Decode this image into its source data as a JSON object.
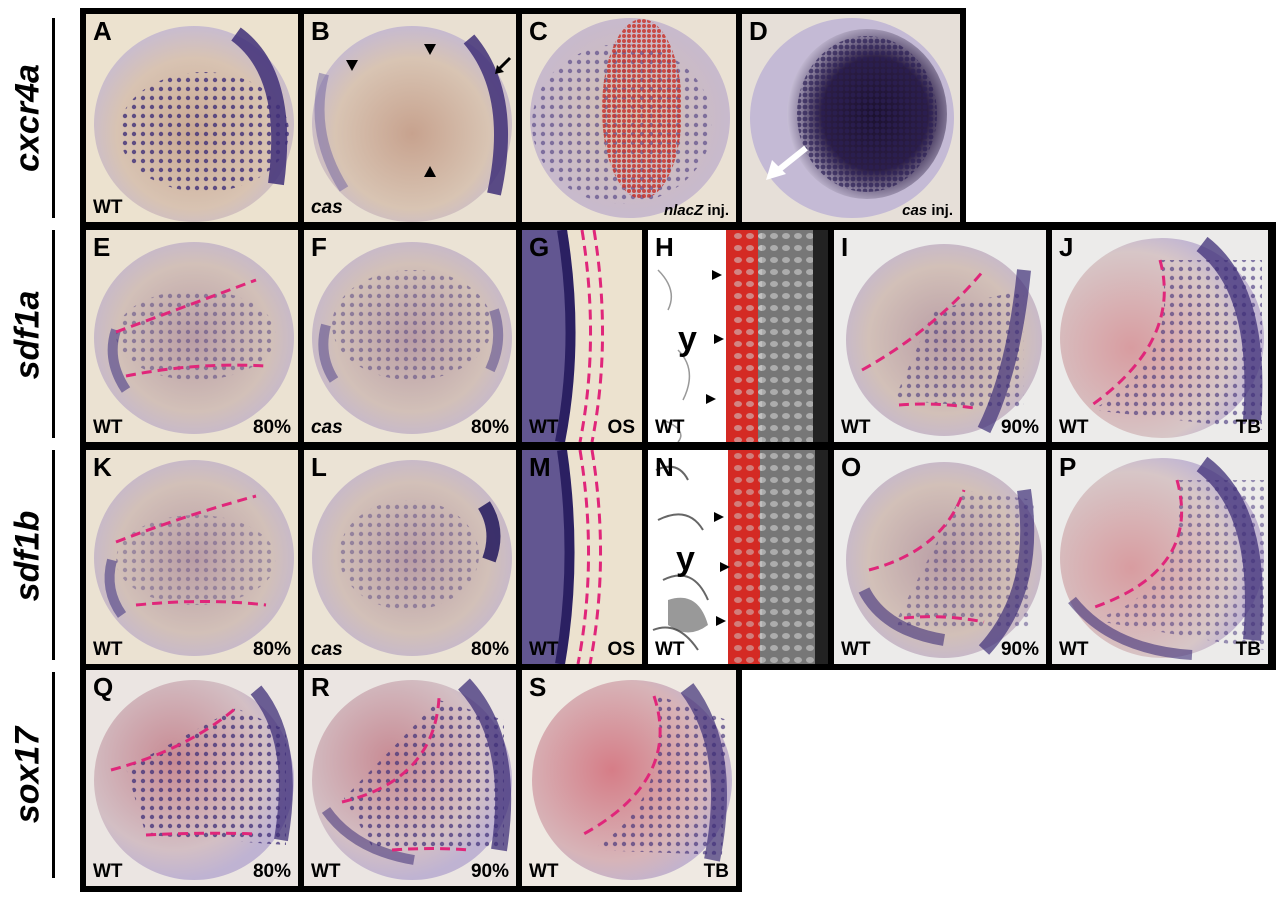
{
  "rows": [
    {
      "gene": "cxcr4a"
    },
    {
      "gene": "sdf1a"
    },
    {
      "gene": "sdf1b"
    },
    {
      "gene": "sox17"
    }
  ],
  "panels": {
    "A": {
      "letter": "A",
      "condition": "WT",
      "stage": ""
    },
    "B": {
      "letter": "B",
      "condition": "cas",
      "stage": ""
    },
    "C": {
      "letter": "C",
      "injection_gene": "nlacZ",
      "injection_suffix": " inj."
    },
    "D": {
      "letter": "D",
      "injection_gene": "cas",
      "injection_suffix": " inj."
    },
    "E": {
      "letter": "E",
      "condition": "WT",
      "stage": "80%"
    },
    "F": {
      "letter": "F",
      "condition": "cas",
      "stage": "80%"
    },
    "G": {
      "letter": "G",
      "condition": "WT",
      "stage": "OS"
    },
    "H": {
      "letter": "H",
      "condition": "WT",
      "label": "y"
    },
    "I": {
      "letter": "I",
      "condition": "WT",
      "stage": "90%"
    },
    "J": {
      "letter": "J",
      "condition": "WT",
      "stage": "TB"
    },
    "K": {
      "letter": "K",
      "condition": "WT",
      "stage": "80%"
    },
    "L": {
      "letter": "L",
      "condition": "cas",
      "stage": "80%"
    },
    "M": {
      "letter": "M",
      "condition": "WT",
      "stage": "OS"
    },
    "N": {
      "letter": "N",
      "condition": "WT",
      "label": "y"
    },
    "O": {
      "letter": "O",
      "condition": "WT",
      "stage": "90%"
    },
    "P": {
      "letter": "P",
      "condition": "WT",
      "stage": "TB"
    },
    "Q": {
      "letter": "Q",
      "condition": "WT",
      "stage": "80%"
    },
    "R": {
      "letter": "R",
      "condition": "WT",
      "stage": "90%"
    },
    "S": {
      "letter": "S",
      "condition": "WT",
      "stage": "TB"
    }
  },
  "colors": {
    "stain_purple": "#3f2f78",
    "outline_magenta": "#e0267a",
    "background_cream": "#ece2cf",
    "fluorescence_red": "#d42a24"
  }
}
